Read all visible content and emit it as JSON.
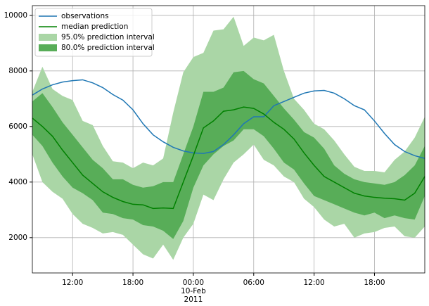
{
  "chart_data": {
    "type": "line",
    "x": [
      -16,
      -15,
      -14,
      -13,
      -12,
      -11,
      -10,
      -9,
      -8,
      -7,
      -6,
      -5,
      -4,
      -3,
      -2,
      -1,
      0,
      1,
      2,
      3,
      4,
      5,
      6,
      7,
      8,
      9,
      10,
      11,
      12,
      13,
      14,
      15,
      16,
      17,
      18,
      19,
      20,
      21,
      22,
      23
    ],
    "xlim": [
      -16,
      23
    ],
    "xticks": [
      {
        "value": -12,
        "label": "12:00"
      },
      {
        "value": -6,
        "label": "18:00"
      },
      {
        "value": 0,
        "label": "00:00\n10-Feb\n2011"
      },
      {
        "value": 6,
        "label": "06:00"
      },
      {
        "value": 12,
        "label": "12:00"
      },
      {
        "value": 18,
        "label": "18:00"
      }
    ],
    "ylim": [
      730,
      10350
    ],
    "yticks": [
      2000,
      4000,
      6000,
      8000,
      10000
    ],
    "grid": true,
    "legend": "upper left",
    "bands": [
      {
        "name": "95.0% prediction interval",
        "color": "#aad6a6",
        "upper": [
          7250,
          8150,
          7350,
          7100,
          6950,
          6200,
          6050,
          5300,
          4750,
          4700,
          4500,
          4700,
          4600,
          4850,
          6500,
          7950,
          8500,
          8650,
          9450,
          9500,
          9950,
          8900,
          9200,
          9100,
          9300,
          8000,
          7000,
          6600,
          6100,
          5900,
          5500,
          5000,
          4550,
          4400,
          4400,
          4350,
          4800,
          5100,
          5600,
          6350
        ],
        "lower": [
          5000,
          4000,
          3650,
          3400,
          2850,
          2500,
          2350,
          2150,
          2200,
          2100,
          1750,
          1400,
          1250,
          1750,
          1200,
          2000,
          2500,
          3550,
          3350,
          4100,
          4700,
          5000,
          5350,
          4800,
          4600,
          4200,
          4000,
          3400,
          3100,
          2650,
          2400,
          2500,
          2000,
          2150,
          2200,
          2350,
          2400,
          2050,
          2000,
          2400
        ]
      },
      {
        "name": "80.0% prediction interval",
        "color": "#58ad58",
        "upper": [
          6900,
          7200,
          6700,
          6150,
          5700,
          5250,
          4800,
          4500,
          4100,
          4100,
          3900,
          3800,
          3850,
          4000,
          4000,
          5000,
          6000,
          7250,
          7250,
          7400,
          7950,
          8000,
          7700,
          7550,
          7100,
          6650,
          6250,
          5800,
          5600,
          5200,
          4600,
          4300,
          4100,
          4000,
          3950,
          3900,
          4000,
          4250,
          4600,
          5300
        ],
        "lower": [
          5700,
          5300,
          4700,
          4200,
          3800,
          3600,
          3350,
          2900,
          2850,
          2700,
          2650,
          2450,
          2400,
          2250,
          1950,
          2600,
          3800,
          4600,
          5000,
          5300,
          5500,
          5900,
          5900,
          5650,
          5200,
          4700,
          4450,
          3950,
          3500,
          3350,
          3200,
          3050,
          2900,
          2800,
          2900,
          2700,
          2800,
          2700,
          2650,
          3500
        ]
      }
    ],
    "series": [
      {
        "name": "observations",
        "color": "#1f77b4",
        "values": [
          7130,
          7350,
          7500,
          7600,
          7650,
          7680,
          7570,
          7400,
          7150,
          6950,
          6600,
          6100,
          5700,
          5450,
          5250,
          5120,
          5050,
          5030,
          5100,
          5350,
          5700,
          6100,
          6350,
          6350,
          6750,
          6900,
          7050,
          7200,
          7280,
          7300,
          7200,
          7000,
          6750,
          6600,
          6200,
          5750,
          5350,
          5100,
          4950,
          4850
        ]
      },
      {
        "name": "median prediction",
        "color": "#008000",
        "values": [
          6300,
          6000,
          5650,
          5150,
          4700,
          4250,
          3950,
          3650,
          3450,
          3300,
          3200,
          3180,
          3050,
          3070,
          3050,
          4000,
          4950,
          5950,
          6200,
          6550,
          6600,
          6700,
          6650,
          6450,
          6150,
          5900,
          5550,
          5050,
          4600,
          4200,
          4000,
          3800,
          3600,
          3500,
          3450,
          3420,
          3400,
          3350,
          3600,
          4200
        ]
      }
    ]
  }
}
